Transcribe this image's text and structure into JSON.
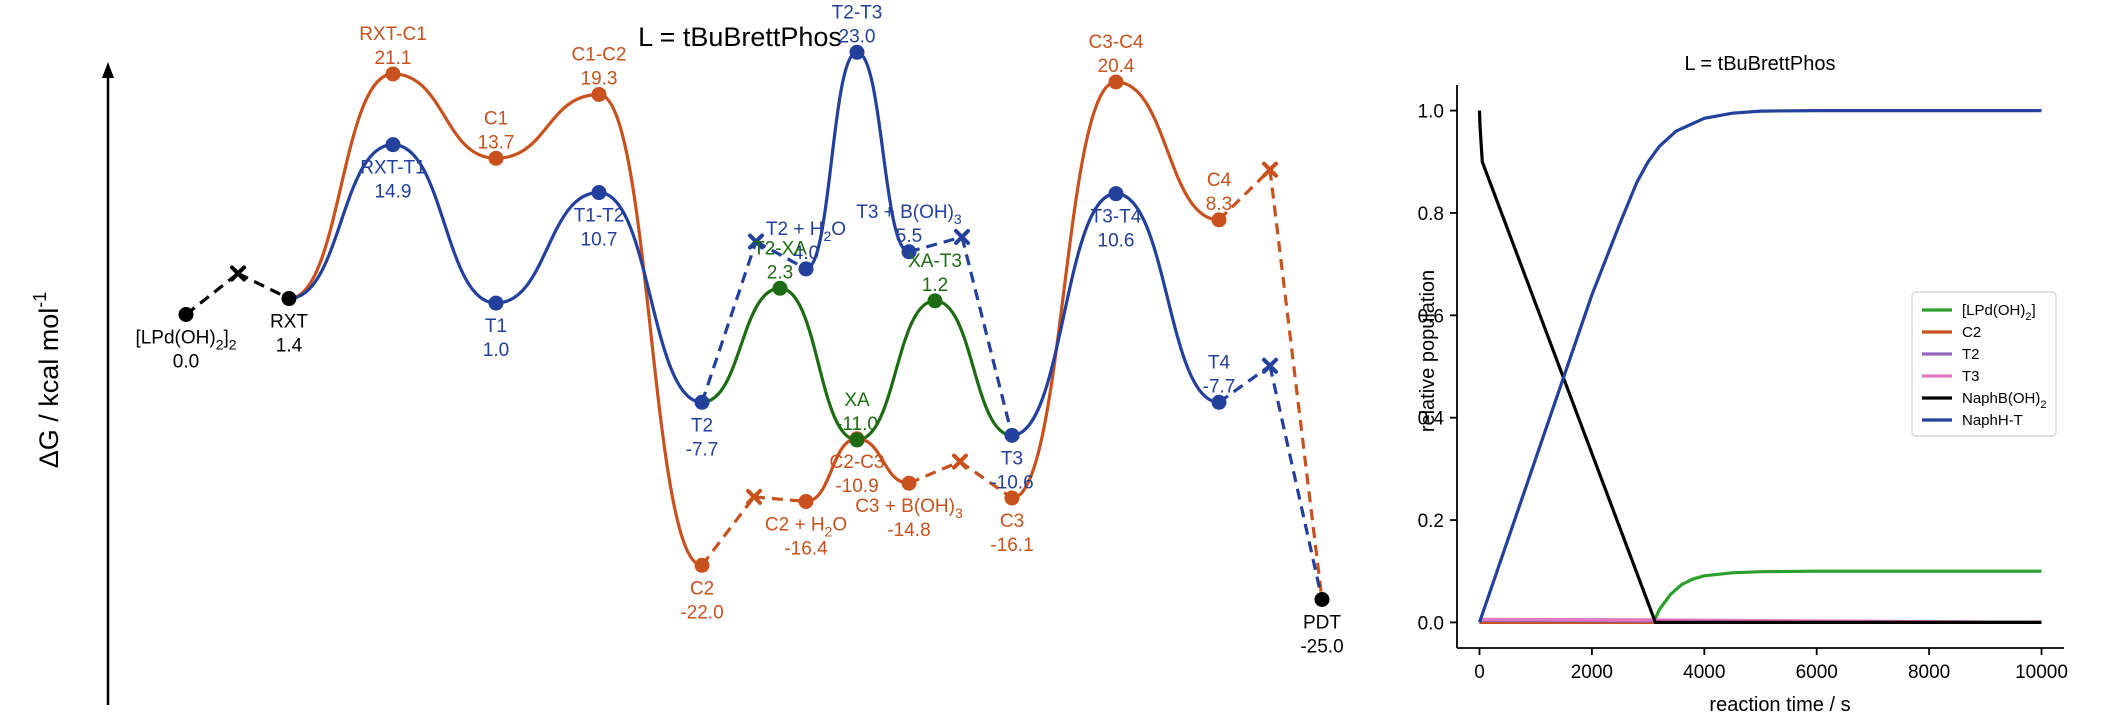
{
  "chart_data": [
    {
      "type": "line",
      "title": "L = tBuBrettPhos",
      "ylabel_main": "ΔG / kcal mol",
      "ylabel_sup": "-1",
      "colors": {
        "black": "#000000",
        "orange": "#c8511d",
        "blue": "#22409c",
        "green": "#1d6b12"
      },
      "states": [
        {
          "id": "LPdOH2",
          "name": "[LPd(OH)",
          "sub": "2",
          "tail": "]",
          "sub2": "2",
          "value": "0.0",
          "energy": 0.0,
          "color": "black"
        },
        {
          "id": "RXT",
          "name": "RXT",
          "value": "1.4",
          "energy": 1.4,
          "color": "black"
        },
        {
          "id": "RXT-C1",
          "name": "RXT-C1",
          "value": "21.1",
          "energy": 21.1,
          "color": "orange"
        },
        {
          "id": "C1",
          "name": "C1",
          "value": "13.7",
          "energy": 13.7,
          "color": "orange"
        },
        {
          "id": "C1-C2",
          "name": "C1-C2",
          "value": "19.3",
          "energy": 19.3,
          "color": "orange"
        },
        {
          "id": "C2",
          "name": "C2",
          "value": "-22.0",
          "energy": -22.0,
          "color": "orange"
        },
        {
          "id": "C2H2O",
          "name": "C2 + H",
          "sub": "2",
          "tail": "O",
          "value": "-16.4",
          "energy": -16.4,
          "color": "orange"
        },
        {
          "id": "C2-C3",
          "name": "C2-C3",
          "value": "-10.9",
          "energy": -10.9,
          "color": "orange"
        },
        {
          "id": "C3BOH3",
          "name": "C3 + B(OH)",
          "sub": "3",
          "value": "-14.8",
          "energy": -14.8,
          "color": "orange"
        },
        {
          "id": "C3",
          "name": "C3",
          "value": "-16.1",
          "energy": -16.1,
          "color": "orange"
        },
        {
          "id": "C3-C4",
          "name": "C3-C4",
          "value": "20.4",
          "energy": 20.4,
          "color": "orange"
        },
        {
          "id": "C4",
          "name": "C4",
          "value": "8.3",
          "energy": 8.3,
          "color": "orange"
        },
        {
          "id": "RXT-T1",
          "name": "RXT-T1",
          "value": "14.9",
          "energy": 14.9,
          "color": "blue"
        },
        {
          "id": "T1",
          "name": "T1",
          "value": "1.0",
          "energy": 1.0,
          "color": "blue"
        },
        {
          "id": "T1-T2",
          "name": "T1-T2",
          "value": "10.7",
          "energy": 10.7,
          "color": "blue"
        },
        {
          "id": "T2",
          "name": "T2",
          "value": "-7.7",
          "energy": -7.7,
          "color": "blue"
        },
        {
          "id": "T2H2O",
          "name": "T2 + H",
          "sub": "2",
          "tail": "O",
          "value": "4.0",
          "energy": 4.0,
          "color": "blue"
        },
        {
          "id": "T2-T3",
          "name": "T2-T3",
          "value": "23.0",
          "energy": 23.0,
          "color": "blue"
        },
        {
          "id": "T3BOH3",
          "name": "T3 + B(OH)",
          "sub": "3",
          "value": "5.5",
          "energy": 5.5,
          "color": "blue"
        },
        {
          "id": "T3",
          "name": "T3",
          "value": "-10.6",
          "energy": -10.6,
          "color": "blue"
        },
        {
          "id": "T3-T4",
          "name": "T3-T4",
          "value": "10.6",
          "energy": 10.6,
          "color": "blue"
        },
        {
          "id": "T4",
          "name": "T4",
          "value": "-7.7",
          "energy": -7.7,
          "color": "blue"
        },
        {
          "id": "T2-XA",
          "name": "T2-XA",
          "value": "2.3",
          "energy": 2.3,
          "color": "green"
        },
        {
          "id": "XA",
          "name": "XA",
          "value": "-11.0",
          "energy": -11.0,
          "color": "green"
        },
        {
          "id": "XA-T3",
          "name": "XA-T3",
          "value": "1.2",
          "energy": 1.2,
          "color": "green"
        },
        {
          "id": "PDT",
          "name": "PDT",
          "value": "-25.0",
          "energy": -25.0,
          "color": "black"
        }
      ]
    },
    {
      "type": "line",
      "title": "L = tBuBrettPhos",
      "xlabel": "reaction time / s",
      "ylabel": "relative population",
      "xlim": [
        -400,
        10400
      ],
      "ylim": [
        -0.05,
        1.05
      ],
      "xticks": [
        "0",
        "2000",
        "4000",
        "6000",
        "8000",
        "10000"
      ],
      "xtick_values": [
        0,
        2000,
        4000,
        6000,
        8000,
        10000
      ],
      "yticks": [
        "0.0",
        "0.2",
        "0.4",
        "0.6",
        "0.8",
        "1.0"
      ],
      "ytick_values": [
        0.0,
        0.2,
        0.4,
        0.6,
        0.8,
        1.0
      ],
      "legend_position": "center-right",
      "series": [
        {
          "name": "[LPd(OH)",
          "name_sub": "2",
          "name_tail": "]",
          "color": "#2ca02c",
          "x": [
            0,
            3100,
            3200,
            3400,
            3600,
            3800,
            4000,
            4500,
            5000,
            6000,
            10000
          ],
          "y": [
            0,
            0,
            0.025,
            0.055,
            0.074,
            0.085,
            0.091,
            0.097,
            0.099,
            0.1,
            0.1
          ]
        },
        {
          "name": "C2",
          "color": "#c8511d",
          "x": [
            0,
            3100,
            10000
          ],
          "y": [
            0,
            0,
            0
          ]
        },
        {
          "name": "T2",
          "color": "#9467bd",
          "x": [
            0,
            3100,
            10000
          ],
          "y": [
            0.004,
            0.003,
            0
          ]
        },
        {
          "name": "T3",
          "color": "#e377c2",
          "x": [
            0,
            3100,
            10000
          ],
          "y": [
            0.006,
            0.005,
            0
          ]
        },
        {
          "name": "NaphB(OH)",
          "name_sub": "2",
          "color": "#000000",
          "x": [
            0,
            10,
            50,
            3130,
            10000
          ],
          "y": [
            1.0,
            0.97,
            0.9,
            0,
            0
          ]
        },
        {
          "name": "NaphH-T",
          "color": "#22409c",
          "x": [
            0,
            2000,
            2500,
            2800,
            3000,
            3200,
            3500,
            4000,
            4500,
            5000,
            6000,
            10000
          ],
          "y": [
            0,
            0.64,
            0.78,
            0.86,
            0.9,
            0.93,
            0.96,
            0.985,
            0.995,
            0.999,
            1.0,
            1.0
          ]
        }
      ]
    }
  ]
}
